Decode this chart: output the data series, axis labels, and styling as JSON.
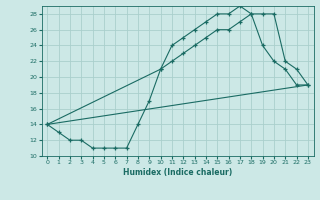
{
  "xlabel": "Humidex (Indice chaleur)",
  "background_color": "#cce8e6",
  "grid_color": "#aacfcc",
  "line_color": "#1a6b63",
  "xlim": [
    -0.5,
    23.5
  ],
  "ylim": [
    10,
    29
  ],
  "xticks": [
    0,
    1,
    2,
    3,
    4,
    5,
    6,
    7,
    8,
    9,
    10,
    11,
    12,
    13,
    14,
    15,
    16,
    17,
    18,
    19,
    20,
    21,
    22,
    23
  ],
  "yticks": [
    10,
    12,
    14,
    16,
    18,
    20,
    22,
    24,
    26,
    28
  ],
  "line1_x": [
    0,
    1,
    2,
    3,
    4,
    5,
    6,
    7,
    8,
    9,
    10,
    11,
    12,
    13,
    14,
    15,
    16,
    17,
    18,
    19,
    20,
    21,
    22,
    23
  ],
  "line1_y": [
    14,
    13,
    12,
    12,
    11,
    11,
    11,
    11,
    14,
    17,
    21,
    24,
    25,
    26,
    27,
    28,
    28,
    29,
    28,
    24,
    22,
    21,
    19,
    19
  ],
  "line2_x": [
    0,
    10,
    11,
    12,
    13,
    14,
    15,
    16,
    17,
    18,
    19,
    20,
    21,
    22,
    23
  ],
  "line2_y": [
    14,
    21,
    22,
    23,
    24,
    25,
    26,
    26,
    27,
    28,
    28,
    28,
    22,
    21,
    19
  ],
  "line3_x": [
    0,
    23
  ],
  "line3_y": [
    14,
    19
  ]
}
